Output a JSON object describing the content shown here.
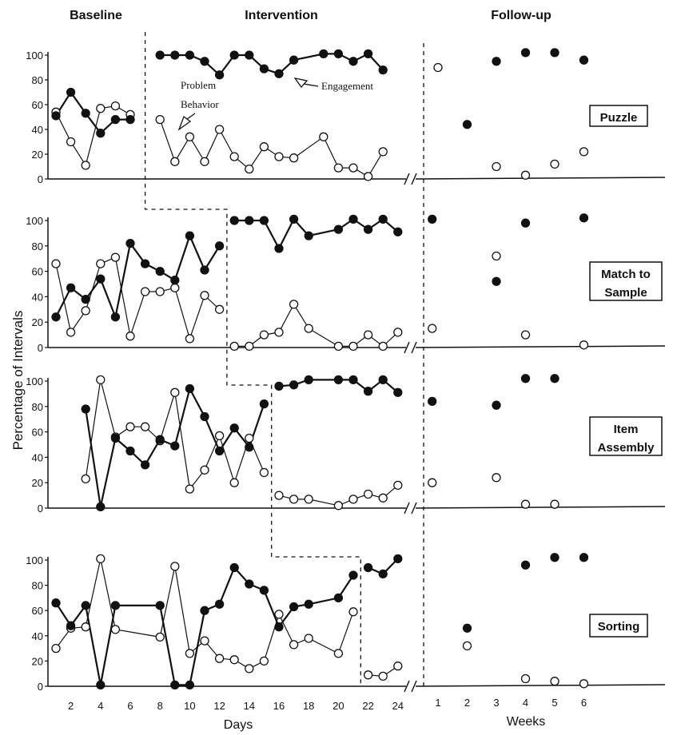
{
  "chart_data": {
    "type": "line",
    "title": "",
    "phase_labels": [
      "Baseline",
      "Intervention",
      "Follow-up"
    ],
    "xlabel_days": "Days",
    "xlabel_weeks": "Weeks",
    "ylabel": "Percentage of Intervals",
    "ylim": [
      0,
      100
    ],
    "y_ticks": [
      0,
      20,
      40,
      60,
      80,
      100
    ],
    "day_ticks": [
      2,
      4,
      6,
      8,
      10,
      12,
      14,
      16,
      18,
      20,
      22,
      24
    ],
    "week_ticks": [
      1,
      2,
      3,
      4,
      5,
      6
    ],
    "annotations": {
      "problem_line1": "Problem",
      "problem_line2": "Behavior",
      "engagement": "Engagement"
    },
    "panels": [
      {
        "task": "Puzzle",
        "phase_change_after_day": 7,
        "baseline_engagement": [
          [
            1,
            51
          ],
          [
            2,
            70
          ],
          [
            3,
            53
          ],
          [
            4,
            37
          ],
          [
            5,
            48
          ],
          [
            6,
            48
          ]
        ],
        "baseline_problem": [
          [
            1,
            54
          ],
          [
            2,
            30
          ],
          [
            3,
            11
          ],
          [
            4,
            57
          ],
          [
            5,
            59
          ],
          [
            6,
            52
          ]
        ],
        "intervention_engagement": [
          [
            8,
            100
          ],
          [
            9,
            100
          ],
          [
            10,
            100
          ],
          [
            11,
            95
          ],
          [
            12,
            84
          ],
          [
            13,
            100
          ],
          [
            14,
            100
          ],
          [
            15,
            89
          ],
          [
            16,
            85
          ],
          [
            17,
            96
          ],
          [
            19,
            101
          ],
          [
            20,
            101
          ],
          [
            21,
            95
          ],
          [
            22,
            101
          ],
          [
            23,
            88
          ]
        ],
        "intervention_problem": [
          [
            8,
            48
          ],
          [
            9,
            14
          ],
          [
            10,
            34
          ],
          [
            11,
            14
          ],
          [
            12,
            40
          ],
          [
            13,
            18
          ],
          [
            14,
            8
          ],
          [
            15,
            26
          ],
          [
            16,
            18
          ],
          [
            17,
            17
          ],
          [
            19,
            34
          ],
          [
            20,
            9
          ],
          [
            21,
            9
          ],
          [
            22,
            2
          ],
          [
            23,
            22
          ]
        ],
        "followup_engagement": [
          [
            2,
            44
          ],
          [
            3,
            95
          ],
          [
            4,
            102
          ],
          [
            5,
            102
          ],
          [
            6,
            96
          ]
        ],
        "followup_problem": [
          [
            1,
            90
          ],
          [
            3,
            10
          ],
          [
            4,
            3
          ],
          [
            5,
            12
          ],
          [
            6,
            22
          ]
        ]
      },
      {
        "task": "Match to Sample",
        "phase_change_after_day": 12.5,
        "baseline_engagement": [
          [
            1,
            24
          ],
          [
            2,
            47
          ],
          [
            3,
            38
          ],
          [
            4,
            54
          ],
          [
            5,
            24
          ],
          [
            6,
            82
          ],
          [
            7,
            66
          ],
          [
            8,
            60
          ],
          [
            9,
            53
          ],
          [
            10,
            88
          ],
          [
            11,
            61
          ],
          [
            12,
            80
          ]
        ],
        "baseline_problem": [
          [
            1,
            66
          ],
          [
            2,
            12
          ],
          [
            3,
            29
          ],
          [
            4,
            66
          ],
          [
            5,
            71
          ],
          [
            6,
            9
          ],
          [
            7,
            44
          ],
          [
            8,
            44
          ],
          [
            9,
            47
          ],
          [
            10,
            7
          ],
          [
            11,
            41
          ],
          [
            12,
            30
          ]
        ],
        "intervention_engagement": [
          [
            13,
            100
          ],
          [
            14,
            100
          ],
          [
            15,
            100
          ],
          [
            16,
            78
          ],
          [
            17,
            101
          ],
          [
            18,
            88
          ],
          [
            20,
            93
          ],
          [
            21,
            101
          ],
          [
            22,
            93
          ],
          [
            23,
            101
          ],
          [
            24,
            91
          ]
        ],
        "intervention_problem": [
          [
            13,
            1
          ],
          [
            14,
            1
          ],
          [
            15,
            10
          ],
          [
            16,
            12
          ],
          [
            17,
            34
          ],
          [
            18,
            15
          ],
          [
            20,
            1
          ],
          [
            21,
            1
          ],
          [
            22,
            10
          ],
          [
            23,
            1
          ],
          [
            24,
            12
          ]
        ],
        "followup_engagement": [
          [
            0.8,
            101
          ],
          [
            3,
            52
          ],
          [
            4,
            98
          ],
          [
            6,
            102
          ]
        ],
        "followup_problem": [
          [
            0.8,
            15
          ],
          [
            3,
            72
          ],
          [
            4,
            10
          ],
          [
            6,
            2
          ]
        ]
      },
      {
        "task": "Item Assembly",
        "phase_change_after_day": 15.5,
        "baseline_engagement": [
          [
            3,
            78
          ],
          [
            4,
            1
          ],
          [
            5,
            55
          ],
          [
            6,
            45
          ],
          [
            7,
            34
          ],
          [
            8,
            54
          ],
          [
            9,
            49
          ],
          [
            10,
            94
          ],
          [
            11,
            72
          ],
          [
            12,
            45
          ],
          [
            13,
            63
          ],
          [
            14,
            48
          ],
          [
            15,
            82
          ]
        ],
        "baseline_problem": [
          [
            3,
            23
          ],
          [
            4,
            101
          ],
          [
            5,
            56
          ],
          [
            6,
            64
          ],
          [
            7,
            64
          ],
          [
            8,
            53
          ],
          [
            9,
            91
          ],
          [
            10,
            15
          ],
          [
            11,
            30
          ],
          [
            12,
            57
          ],
          [
            13,
            20
          ],
          [
            14,
            55
          ],
          [
            15,
            28
          ]
        ],
        "intervention_engagement": [
          [
            16,
            96
          ],
          [
            17,
            97
          ],
          [
            18,
            101
          ],
          [
            20,
            101
          ],
          [
            21,
            101
          ],
          [
            22,
            92
          ],
          [
            23,
            101
          ],
          [
            24,
            91
          ]
        ],
        "intervention_problem": [
          [
            16,
            10
          ],
          [
            17,
            7
          ],
          [
            18,
            7
          ],
          [
            20,
            2
          ],
          [
            21,
            7
          ],
          [
            22,
            11
          ],
          [
            23,
            8
          ],
          [
            24,
            18
          ]
        ],
        "followup_engagement": [
          [
            0.8,
            84
          ],
          [
            3,
            81
          ],
          [
            4,
            102
          ],
          [
            5,
            102
          ]
        ],
        "followup_problem": [
          [
            0.8,
            20
          ],
          [
            3,
            24
          ],
          [
            4,
            3
          ],
          [
            5,
            3
          ]
        ]
      },
      {
        "task": "Sorting",
        "phase_change_after_day": 21.5,
        "baseline_engagement": [
          [
            1,
            66
          ],
          [
            2,
            48
          ],
          [
            3,
            64
          ],
          [
            4,
            1
          ],
          [
            5,
            64
          ],
          [
            8,
            64
          ],
          [
            9,
            1
          ],
          [
            10,
            1
          ],
          [
            11,
            60
          ],
          [
            12,
            65
          ],
          [
            13,
            94
          ],
          [
            14,
            81
          ],
          [
            15,
            76
          ],
          [
            16,
            47
          ],
          [
            17,
            63
          ],
          [
            18,
            65
          ],
          [
            20,
            70
          ],
          [
            21,
            88
          ]
        ],
        "baseline_problem": [
          [
            1,
            30
          ],
          [
            2,
            46
          ],
          [
            3,
            47
          ],
          [
            4,
            101
          ],
          [
            5,
            45
          ],
          [
            8,
            39
          ],
          [
            9,
            95
          ],
          [
            10,
            26
          ],
          [
            11,
            36
          ],
          [
            12,
            22
          ],
          [
            13,
            21
          ],
          [
            14,
            14
          ],
          [
            15,
            20
          ],
          [
            16,
            57
          ],
          [
            17,
            33
          ],
          [
            18,
            38
          ],
          [
            20,
            26
          ],
          [
            21,
            59
          ]
        ],
        "intervention_engagement": [
          [
            22,
            94
          ],
          [
            23,
            89
          ],
          [
            24,
            101
          ]
        ],
        "intervention_problem": [
          [
            22,
            9
          ],
          [
            23,
            8
          ],
          [
            24,
            16
          ]
        ],
        "followup_engagement": [
          [
            2,
            46
          ],
          [
            4,
            96
          ],
          [
            5,
            102
          ],
          [
            6,
            102
          ]
        ],
        "followup_problem": [
          [
            2,
            32
          ],
          [
            4,
            6
          ],
          [
            5,
            4
          ],
          [
            6,
            2
          ]
        ]
      }
    ]
  }
}
